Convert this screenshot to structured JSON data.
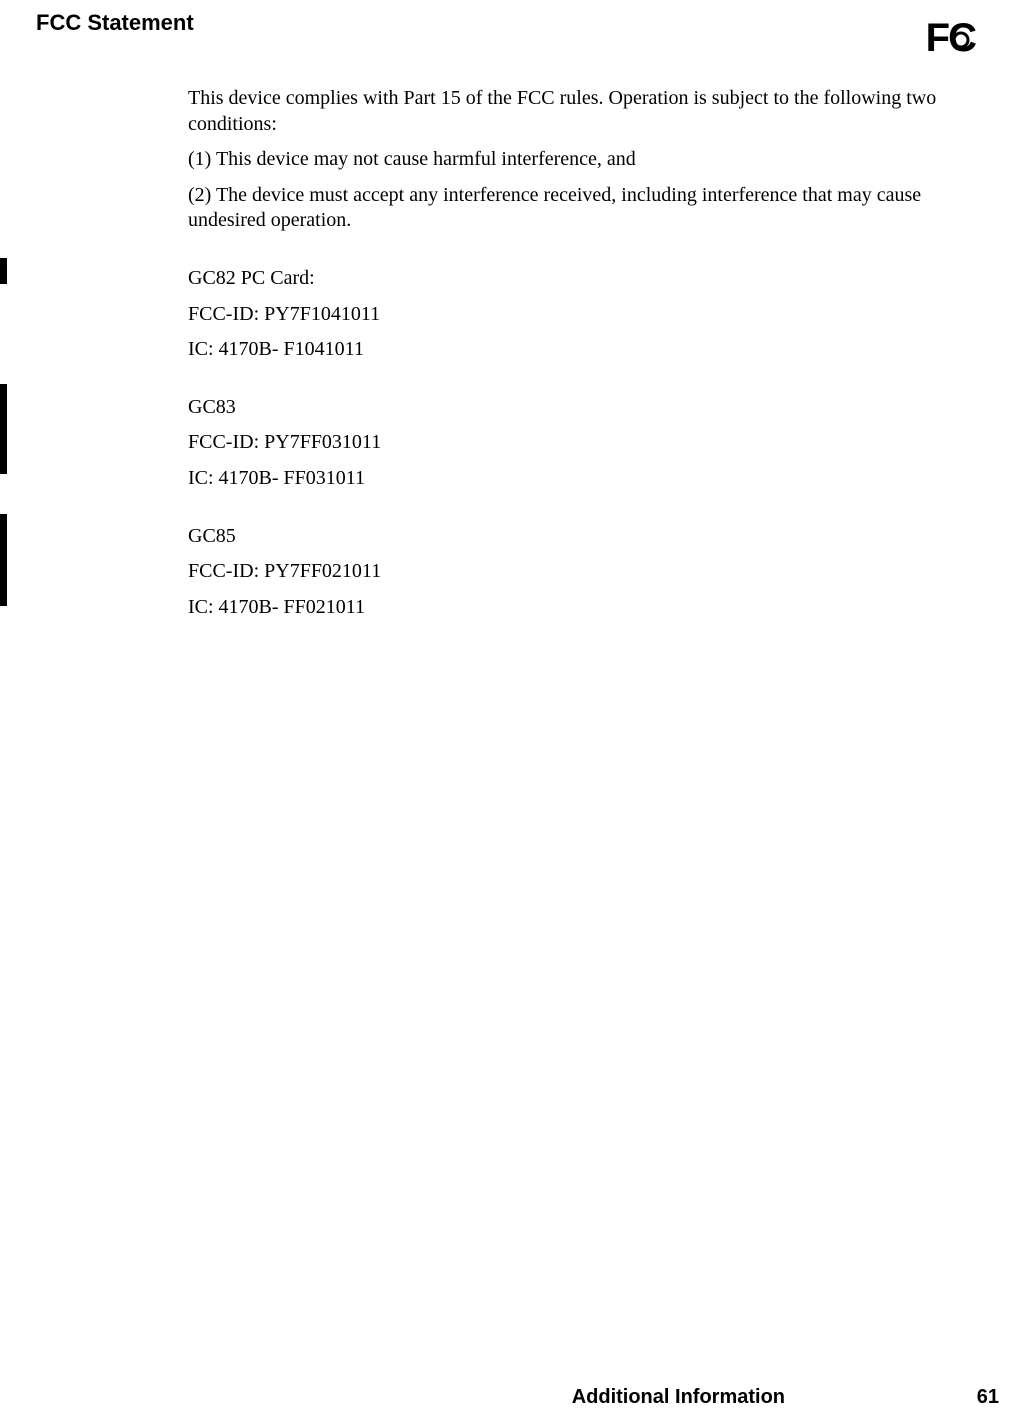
{
  "section_title": "FCC Statement",
  "fcc_logo": {
    "f": "F",
    "c": "C"
  },
  "paragraphs": {
    "intro": "This device complies with Part 15 of the FCC rules. Operation is subject to the following two conditions:",
    "cond1": "(1) This device may not cause harmful interference, and",
    "cond2": "(2) The device must accept any interference received, including interference that may cause undesired operation."
  },
  "devices": [
    {
      "name": "GC82 PC Card:",
      "fcc": "FCC-ID: PY7F1041011",
      "ic": "IC: 4170B- F1041011"
    },
    {
      "name": "GC83",
      "fcc": "FCC-ID: PY7FF031011",
      "ic": "IC: 4170B- FF031011"
    },
    {
      "name": "GC85",
      "fcc": "FCC-ID: PY7FF021011",
      "ic": "IC: 4170B- FF021011"
    }
  ],
  "footer": {
    "label": "Additional Information",
    "page": "61"
  }
}
